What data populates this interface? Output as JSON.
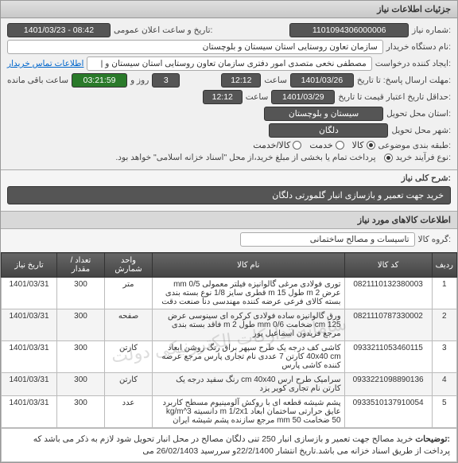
{
  "header": {
    "title": "جزئیات اطلاعات نیاز"
  },
  "form": {
    "need_no_label": ":شماره نیاز",
    "need_no": "1101094306000006",
    "announce_label": ":تاریخ و ساعت اعلان عمومی",
    "announce": "1401/03/23 - 08:42",
    "buyer_label": ":نام دستگاه خریدار",
    "buyer": "سازمان تعاون روستایی استان سیستان و بلوچستان",
    "creator_label": ":ایجاد کننده درخواست",
    "creator": "مصطفی  نخعی متصدی امور دفتری سازمان تعاون روستایی استان سیستان و |",
    "creator_link": "اطلاعات تماس خریدار",
    "deadline_label": ":مهلت ارسال پاسخ: تا تاریخ",
    "deadline_date": "1401/03/26",
    "time_label": "ساعت",
    "deadline_time": "12:12",
    "remain_daylabel": "روز و",
    "remain_days": "3",
    "remain_time": "03:21:59",
    "remain_suffix": "ساعت باقی مانده",
    "valid_label": ":حداقل تاریخ اعتبار قیمت تا تاریخ",
    "valid_date": "1401/03/29",
    "valid_time": "12:12",
    "province_label": ":استان محل تحویل",
    "province": "سیستان و بلوچستان",
    "city_label": ":شهر محل تحویل",
    "city": "دلگان",
    "category_label": ":طبقه بندی موضوعی",
    "category_options": {
      "goods": "کالا",
      "service": "خدمت",
      "both": "کالا/خدمت"
    },
    "process_label": ":نوع فرآیند خرید",
    "process_note": "پرداخت تمام یا بخشی از مبلغ خرید،از محل \"اسناد خزانه اسلامی\" خواهد بود."
  },
  "desc": {
    "section_label": ":شرح کلی نیاز",
    "text": "خرید جهت تعمیر و بازسازی انبار گلمورتی دلگان"
  },
  "items": {
    "section_title": "اطلاعات کالاهای مورد نیاز",
    "group_label": ":گروه کالا",
    "group_value": "تاسیسات و مصالح ساختمانی",
    "columns": {
      "row": "ردیف",
      "code": "کد کالا",
      "name": "نام کالا",
      "unit": "واحد شمارش",
      "qty": "تعداد / مقدار",
      "date": "تاريخ نياز"
    },
    "rows": [
      {
        "n": "1",
        "code": "0821110132380003",
        "name": "توری فولادی مرغی گالوانیزه فیلتر معمولی mm 0/5 عرض m 2 طول m 15 قطری سایز 1/8 نوع بسته بندی بسته کالای فرعی عرضه کننده مهندسی دنا صنعت دقت",
        "unit": "متر",
        "qty": "300",
        "date": "1401/03/31"
      },
      {
        "n": "2",
        "code": "0821110787330002",
        "name": "ورق گالوانیزه ساده فولادی کرکره ای سینوسی عرض cm 125 ضخامت mm 0/6 طول m 2 فاقد بسته بندی مرجع فریدون اسماعیل پور",
        "unit": "صفحه",
        "qty": "300",
        "date": "1401/03/31"
      },
      {
        "n": "3",
        "code": "0933211053460115",
        "name": "کاشی کف درجه یک طرح سپهر براق رنگ روشن ابعاد 40x40 cm کارتن 7 عددی نام تجاری پارس مرجع عرضه کننده کاشی پارس",
        "unit": "کارتن",
        "qty": "300",
        "date": "1401/03/31"
      },
      {
        "n": "4",
        "code": "0933221098890136",
        "name": "سرامیک طرح ارس cm 40x40 رنگ سفید درجه یک کارتن نام تجاری کویر یزد",
        "unit": "کارتن",
        "qty": "300",
        "date": "1401/03/31"
      },
      {
        "n": "5",
        "code": "0933510137910054",
        "name": "پشم شیشه قطعه ای با روکش آلومینیوم مسطح کاربرد عایق حرارتی ساختمان ابعاد m 1/2x1 دانسیته kg/m^3 50 ضخامت mm 50 مرجع سازنده پشم شیشه ایران",
        "unit": "عدد",
        "qty": "300",
        "date": "1401/03/31"
      }
    ],
    "watermark": "سامانه تدارکات الکترونیکی دولت"
  },
  "footer": {
    "label": ":توضيحات",
    "text": "خرید مصالح جهت تعمیر و بازسازی انبار 250 تنی دلگان مصالح در محل انبار تحویل شود لازم به ذکر می باشد که پرداخت از طریق اسناد خزانه می باشد.تاریخ انتشار 22/2/1400و سررسید 26/02/1403 می"
  },
  "ui_colors": {
    "field_bg": "#555555",
    "field_fg": "#ffffff",
    "green": "#2a7a2a",
    "th_bg": "#555555"
  }
}
